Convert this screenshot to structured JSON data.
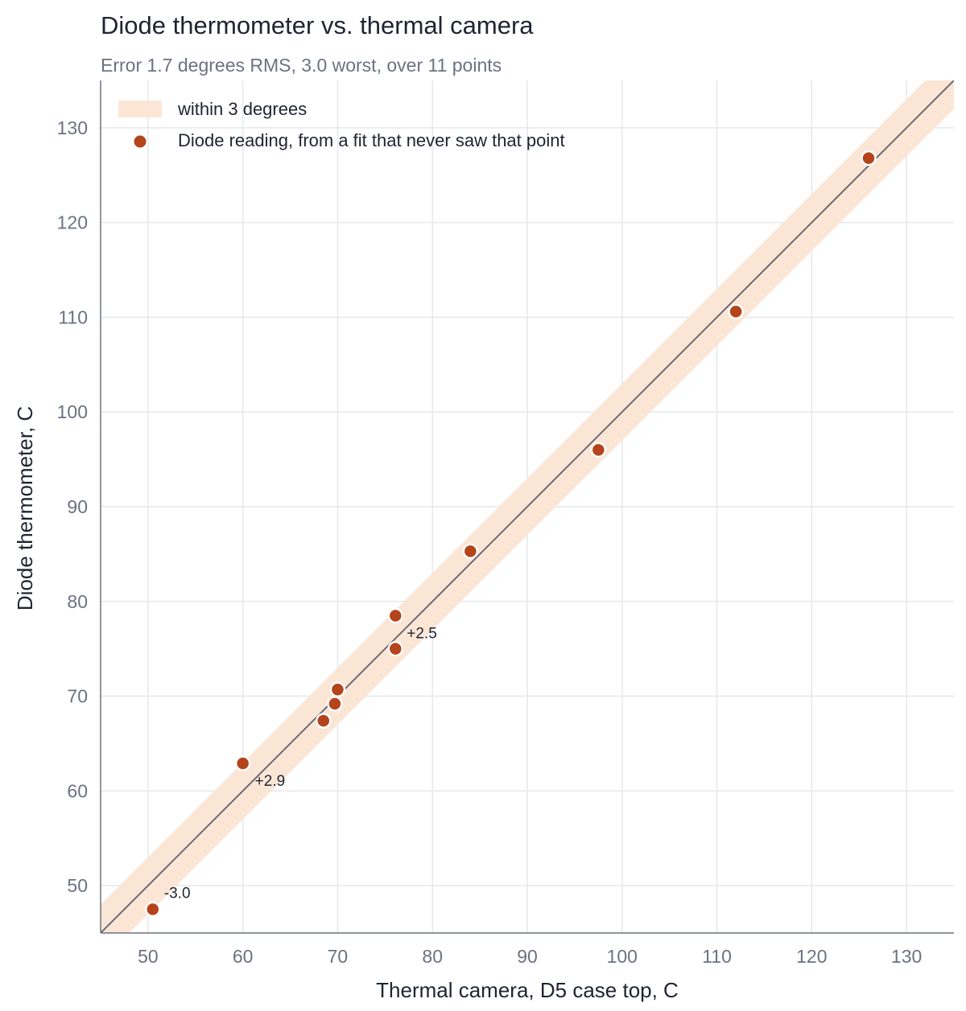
{
  "chart_data": {
    "type": "scatter",
    "title": "Diode thermometer vs. thermal camera",
    "subtitle": "Error 1.7 degrees RMS, 3.0 worst, over 11 points",
    "xlabel": "Thermal camera, D5 case top, C",
    "ylabel": "Diode thermometer, C",
    "xlim": [
      45,
      135
    ],
    "ylim": [
      45,
      135
    ],
    "x_ticks": [
      "50",
      "60",
      "70",
      "80",
      "90",
      "100",
      "110",
      "120",
      "130"
    ],
    "y_ticks": [
      "50",
      "60",
      "70",
      "80",
      "90",
      "100",
      "110",
      "120",
      "130"
    ],
    "grid": true,
    "legend_position": "top-left",
    "band": {
      "label": "within 3 degrees",
      "half_width": 3,
      "color": "#fbe6d6"
    },
    "reference_line": {
      "slope": 1,
      "intercept": 0,
      "color": "#6b6877"
    },
    "series": [
      {
        "name": "Diode reading, from a fit that never saw that point",
        "color": "#b5441b",
        "points": [
          {
            "x": 50.5,
            "y": 47.5
          },
          {
            "x": 60.0,
            "y": 62.9
          },
          {
            "x": 68.5,
            "y": 67.4
          },
          {
            "x": 69.7,
            "y": 69.2
          },
          {
            "x": 70.0,
            "y": 70.7
          },
          {
            "x": 76.1,
            "y": 75.0
          },
          {
            "x": 76.1,
            "y": 78.5
          },
          {
            "x": 84.0,
            "y": 85.3
          },
          {
            "x": 97.5,
            "y": 96.0
          },
          {
            "x": 112.0,
            "y": 110.6
          },
          {
            "x": 126.0,
            "y": 126.8
          }
        ]
      }
    ],
    "annotations": [
      {
        "text": "-3.0",
        "x": 50.5,
        "y": 47.5
      },
      {
        "text": "+2.9",
        "x": 60.0,
        "y": 62.9
      },
      {
        "text": "+2.5",
        "x": 76.1,
        "y": 78.5
      }
    ]
  }
}
